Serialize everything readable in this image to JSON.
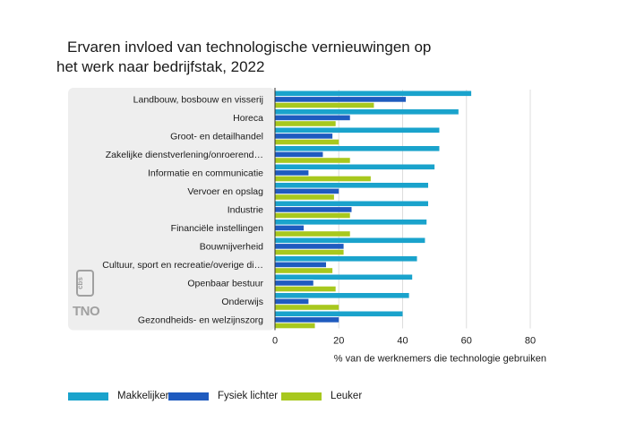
{
  "title_line1": "Ervaren invloed van technologische vernieuwingen op",
  "title_line2": "het werk naar bedrijfstak, 2022",
  "logos": {
    "cbs": "cbs",
    "tno": "TNO"
  },
  "colors": {
    "makkelijker": "#1aa3cc",
    "fysiek_lichter": "#1f5bbf",
    "leuker": "#a8c81e",
    "panel": "#eeeeee",
    "grid": "#dddddd"
  },
  "chart_data": {
    "type": "bar",
    "orientation": "horizontal",
    "categories": [
      "Landbouw, bosbouw en visserij",
      "Horeca",
      "Groot- en detailhandel",
      "Zakelijke dienstverlening/onroerend…",
      "Informatie en communicatie",
      "Vervoer en opslag",
      "Industrie",
      "Financiële instellingen",
      "Bouwnijverheid",
      "Cultuur, sport en recreatie/overige di…",
      "Openbaar bestuur",
      "Onderwijs",
      "Gezondheids- en welzijnszorg"
    ],
    "series": [
      {
        "name": "Makkelijker",
        "color": "#1aa3cc",
        "values": [
          61.5,
          57.5,
          51.5,
          51.5,
          50,
          48,
          48,
          47.5,
          47,
          44.5,
          43,
          42,
          40
        ]
      },
      {
        "name": "Fysiek lichter",
        "color": "#1f5bbf",
        "values": [
          41,
          23.5,
          18,
          15,
          10.5,
          20,
          24,
          9,
          21.5,
          16,
          12,
          10.5,
          20
        ]
      },
      {
        "name": "Leuker",
        "color": "#a8c81e",
        "values": [
          31,
          19,
          20,
          23.5,
          30,
          18.5,
          23.5,
          23.5,
          21.5,
          18,
          19,
          20,
          12.5
        ]
      }
    ],
    "xlabel": "% van de werknemers die technologie gebruiken",
    "ylabel": "",
    "xlim": [
      0,
      80
    ],
    "xticks": [
      0,
      20,
      40,
      60,
      80
    ],
    "grid": true,
    "legend_position": "bottom"
  }
}
